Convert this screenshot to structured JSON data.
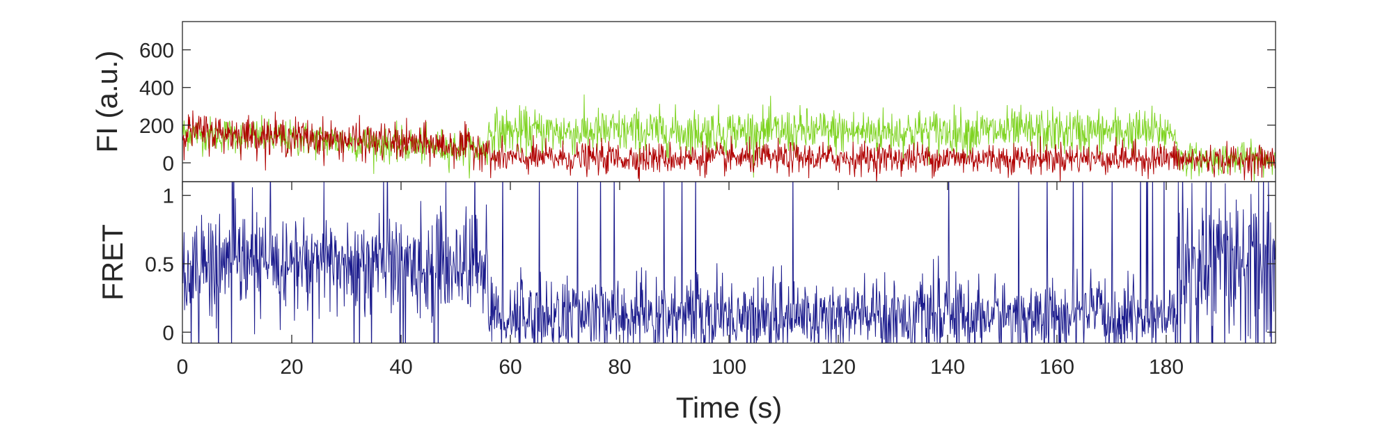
{
  "chart_data": [
    {
      "type": "line",
      "panel": "intensity",
      "xlabel": "",
      "ylabel": "FI (a.u.)",
      "xlim": [
        0,
        200
      ],
      "ylim": [
        -100,
        750
      ],
      "yticks": [
        0,
        200,
        400,
        600
      ],
      "grid": false,
      "series": [
        {
          "color": "#7ed321",
          "segments": [
            {
              "x_start": 0,
              "x_end": 56,
              "mean": 90,
              "noise": 85,
              "trend_start": 160,
              "trend_end": 70
            },
            {
              "x_start": 56,
              "x_end": 182,
              "mean": 165,
              "noise": 110
            },
            {
              "x_start": 182,
              "x_end": 200,
              "mean": 20,
              "noise": 75
            }
          ]
        },
        {
          "color": "#b00000",
          "segments": [
            {
              "x_start": 0,
              "x_end": 56,
              "mean": 100,
              "noise": 90,
              "trend_start": 170,
              "trend_end": 80
            },
            {
              "x_start": 56,
              "x_end": 182,
              "mean": 25,
              "noise": 75
            },
            {
              "x_start": 182,
              "x_end": 200,
              "mean": 15,
              "noise": 70
            }
          ]
        }
      ]
    },
    {
      "type": "line",
      "panel": "fret",
      "xlabel": "Time (s)",
      "ylabel": "FRET",
      "xlim": [
        0,
        200
      ],
      "ylim": [
        -0.08,
        1.1
      ],
      "xticks": [
        0,
        20,
        40,
        60,
        80,
        100,
        120,
        140,
        160,
        180
      ],
      "yticks": [
        0,
        0.5,
        1
      ],
      "ytick_labels": [
        "0",
        "0.5",
        "1"
      ],
      "grid": false,
      "series": [
        {
          "color": "#1a1a8c",
          "segments": [
            {
              "x_start": 0,
              "x_end": 56,
              "mean": 0.5,
              "noise": 0.35
            },
            {
              "x_start": 56,
              "x_end": 182,
              "mean": 0.12,
              "noise": 0.25
            },
            {
              "x_start": 182,
              "x_end": 200,
              "mean": 0.45,
              "noise": 0.6
            }
          ]
        }
      ]
    }
  ]
}
